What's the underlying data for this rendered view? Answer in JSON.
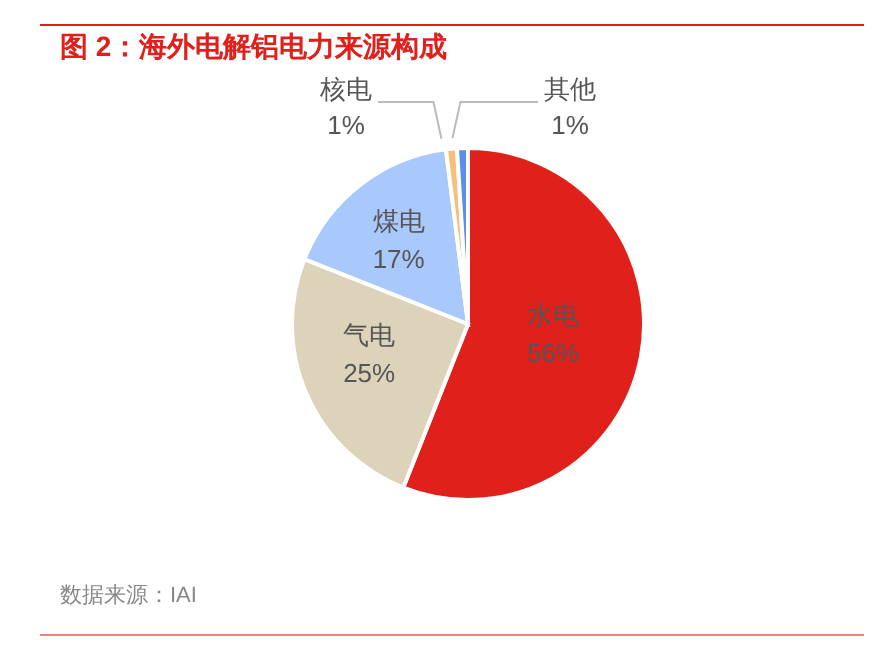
{
  "chart_data": {
    "type": "pie",
    "title": "图 2：海外电解铝电力来源构成",
    "categories": [
      "水电",
      "气电",
      "煤电",
      "核电",
      "其他"
    ],
    "values": [
      56,
      25,
      17,
      1,
      1
    ],
    "colors": [
      "#e0201b",
      "#ddd3bb",
      "#a9c8fb",
      "#f6c07a",
      "#5b8fe8"
    ],
    "value_labels": [
      "56%",
      "25%",
      "17%",
      "1%",
      "1%"
    ],
    "annotations": [
      "数据来源：IAI"
    ]
  }
}
